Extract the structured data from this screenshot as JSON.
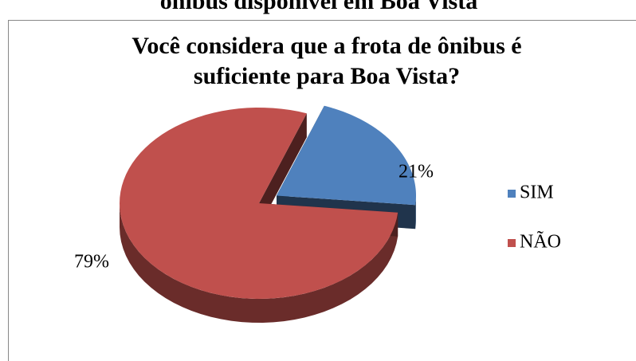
{
  "caption": "ônibus disponível em Boa Vista",
  "chart_data": {
    "type": "pie",
    "title": [
      "Você considera que a frota de ônibus é",
      "suficiente para Boa Vista?"
    ],
    "categories": [
      "SIM",
      "NÃO"
    ],
    "values": [
      21,
      79
    ],
    "value_labels": [
      "21%",
      "79%"
    ],
    "colors": [
      "#4f81bd",
      "#c0504d"
    ],
    "legend": "right"
  }
}
